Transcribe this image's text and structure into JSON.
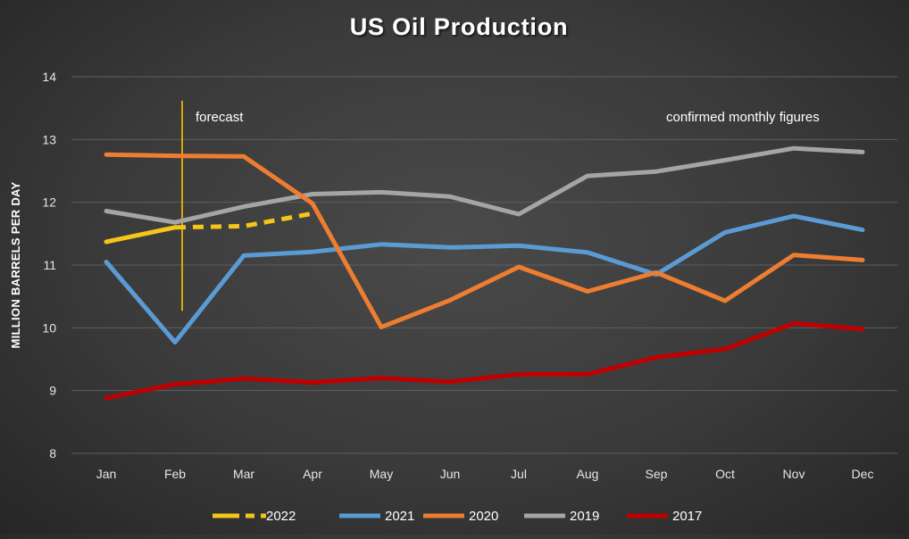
{
  "chart_data": {
    "type": "line",
    "title": "US Oil Production",
    "ylabel": "MILLION BARRELS PER DAY",
    "xlabel": "",
    "ylim": [
      8,
      14
    ],
    "yticks": [
      8,
      9,
      10,
      11,
      12,
      13,
      14
    ],
    "grid": true,
    "legend": "bottom",
    "categories": [
      "Jan",
      "Feb",
      "Mar",
      "Apr",
      "May",
      "Jun",
      "Jul",
      "Aug",
      "Sep",
      "Oct",
      "Nov",
      "Dec"
    ],
    "series": [
      {
        "name": "2022",
        "color": "#f5c518",
        "values": [
          11.37,
          11.6,
          null,
          null,
          null,
          null,
          null,
          null,
          null,
          null,
          null,
          null
        ],
        "forecast_values": [
          null,
          11.6,
          11.62,
          11.82,
          null,
          null,
          null,
          null,
          null,
          null,
          null,
          null
        ]
      },
      {
        "name": "2021",
        "color": "#5b9bd5",
        "values": [
          11.05,
          9.77,
          11.15,
          11.21,
          11.33,
          11.28,
          11.31,
          11.2,
          10.85,
          11.52,
          11.78,
          11.56
        ]
      },
      {
        "name": "2020",
        "color": "#ed7d31",
        "values": [
          12.76,
          12.74,
          12.73,
          11.98,
          10.01,
          10.44,
          10.97,
          10.58,
          10.88,
          10.43,
          11.16,
          11.08
        ]
      },
      {
        "name": "2019",
        "color": "#a5a5a5",
        "values": [
          11.86,
          11.68,
          11.93,
          12.13,
          12.16,
          12.09,
          11.81,
          12.42,
          12.49,
          12.67,
          12.86,
          12.8
        ]
      },
      {
        "name": "2017",
        "color": "#c00000",
        "values": [
          8.88,
          9.1,
          9.19,
          9.13,
          9.2,
          9.14,
          9.26,
          9.26,
          9.53,
          9.66,
          10.07,
          9.98
        ]
      }
    ],
    "annotations": {
      "forecast_label": "forecast",
      "forecast_line_color": "#ffc000",
      "forecast_month": "Feb",
      "forecast_line_range": [
        10.27,
        13.62
      ],
      "confirmed_label": "confirmed monthly figures"
    }
  }
}
